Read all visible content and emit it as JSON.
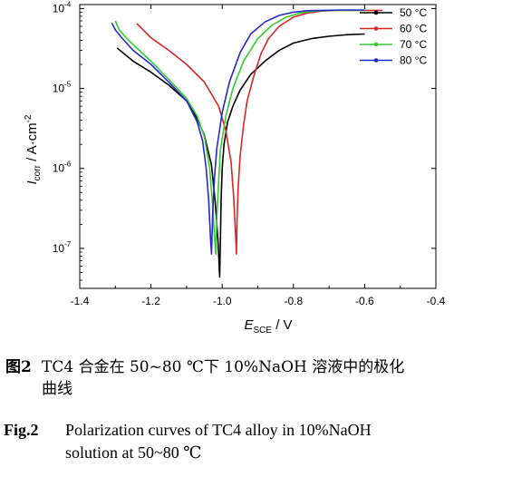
{
  "chart_data": {
    "type": "line",
    "xlabel": "E",
    "xlabel_sub": "SCE",
    "xlabel_unit": " / V",
    "ylabel": "I",
    "ylabel_sub": "corr",
    "ylabel_unit": " / A·cm",
    "ylabel_sup": "-2",
    "xlim": [
      -1.4,
      -0.4
    ],
    "ylim_log10": [
      -7.5,
      -3.95
    ],
    "yscale": "log",
    "x_ticks": [
      "-1.4",
      "-1.2",
      "-1.0",
      "-0.8",
      "-0.6",
      "-0.4"
    ],
    "x_tick_values": [
      -1.4,
      -1.2,
      -1.0,
      -0.8,
      -0.6,
      -0.4
    ],
    "y_tick_exponents": [
      -7,
      -6,
      -5,
      -4
    ],
    "y_tick_base": "10",
    "legend_position": "top-right",
    "series": [
      {
        "name": "50 °C",
        "color": "#000000",
        "x": [
          -1.295,
          -1.25,
          -1.2,
          -1.15,
          -1.1,
          -1.07,
          -1.05,
          -1.03,
          -1.02,
          -1.012,
          -1.007,
          -1.005,
          -1.003,
          -1.0,
          -0.995,
          -0.985,
          -0.97,
          -0.95,
          -0.92,
          -0.88,
          -0.84,
          -0.8,
          -0.75,
          -0.7,
          -0.65,
          -0.6
        ],
        "y": [
          3.2e-05,
          2.2e-05,
          1.6e-05,
          1.1e-05,
          7e-06,
          4.2e-06,
          2.6e-06,
          1.1e-06,
          4e-07,
          1.3e-07,
          4.4e-08,
          1.2e-07,
          4e-07,
          1e-06,
          2e-06,
          3.8e-06,
          6e-06,
          9.5e-06,
          1.5e-05,
          2.2e-05,
          3e-05,
          3.7e-05,
          4.2e-05,
          4.5e-05,
          4.7e-05,
          4.8e-05
        ]
      },
      {
        "name": "60 °C",
        "color": "#d62728",
        "x": [
          -1.24,
          -1.2,
          -1.15,
          -1.1,
          -1.05,
          -1.01,
          -0.99,
          -0.975,
          -0.968,
          -0.962,
          -0.96,
          -0.958,
          -0.955,
          -0.95,
          -0.94,
          -0.93,
          -0.91,
          -0.89,
          -0.87,
          -0.84,
          -0.8,
          -0.76,
          -0.72,
          -0.68,
          -0.62,
          -0.58,
          -0.55
        ],
        "y": [
          6.5e-05,
          4.3e-05,
          3e-05,
          2e-05,
          1.2e-05,
          6e-06,
          3e-06,
          1.2e-06,
          4.5e-07,
          1.4e-07,
          8.5e-08,
          2.5e-07,
          6e-07,
          1.4e-06,
          3.5e-06,
          7e-06,
          1.5e-05,
          2.8e-05,
          4.2e-05,
          6e-05,
          7.8e-05,
          8.8e-05,
          9.3e-05,
          9.5e-05,
          9.5e-05,
          9.5e-05,
          9.5e-05
        ]
      },
      {
        "name": "70 °C",
        "color": "#33cc33",
        "x": [
          -1.3,
          -1.29,
          -1.27,
          -1.24,
          -1.2,
          -1.15,
          -1.1,
          -1.07,
          -1.05,
          -1.035,
          -1.028,
          -1.022,
          -1.018,
          -1.015,
          -1.01,
          -1.005,
          -0.99,
          -0.97,
          -0.94,
          -0.9,
          -0.86,
          -0.82,
          -0.78,
          -0.74,
          -0.7,
          -0.65,
          -0.6
        ],
        "y": [
          7e-05,
          5.5e-05,
          4.3e-05,
          3.2e-05,
          2.2e-05,
          1.3e-05,
          7.5e-06,
          4.5e-06,
          2.5e-06,
          1e-06,
          4e-07,
          1.5e-07,
          8.5e-08,
          2.5e-07,
          7e-07,
          1.7e-06,
          4.5e-06,
          1e-05,
          2.2e-05,
          4.2e-05,
          6.2e-05,
          7.8e-05,
          8.8e-05,
          9.3e-05,
          9.5e-05,
          9.5e-05,
          9.5e-05
        ]
      },
      {
        "name": "80 °C",
        "color": "#2828c8",
        "x": [
          -1.31,
          -1.3,
          -1.28,
          -1.25,
          -1.2,
          -1.15,
          -1.1,
          -1.07,
          -1.055,
          -1.045,
          -1.038,
          -1.033,
          -1.03,
          -1.027,
          -1.022,
          -1.015,
          -1.0,
          -0.98,
          -0.95,
          -0.92,
          -0.88,
          -0.84,
          -0.8,
          -0.76,
          -0.72,
          -0.66,
          -0.6
        ],
        "y": [
          6.6e-05,
          5.4e-05,
          4.2e-05,
          3e-05,
          2e-05,
          1.2e-05,
          7e-06,
          3.8e-06,
          2.2e-06,
          1e-06,
          4e-07,
          1.4e-07,
          8.5e-08,
          2.5e-07,
          7.5e-07,
          1.8e-06,
          5e-06,
          1.2e-05,
          2.8e-05,
          4.8e-05,
          6.8e-05,
          8.2e-05,
          9e-05,
          9.4e-05,
          9.5e-05,
          9.6e-05,
          9.6e-05
        ]
      }
    ]
  },
  "caption": {
    "cn_label": "图2",
    "cn_line1": "TC4 合金在 50~80 ℃下 10%NaOH 溶液中的极化",
    "cn_line2": "曲线",
    "en_label": "Fig.2",
    "en_line1": "Polarization curves of TC4 alloy in 10%NaOH",
    "en_line2": "solution at 50~80 ℃"
  }
}
